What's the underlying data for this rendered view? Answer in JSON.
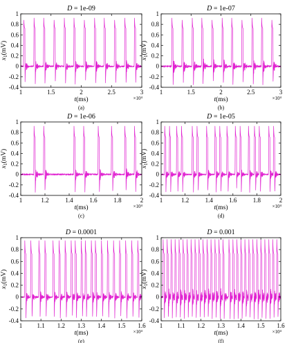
{
  "chart_data": [
    {
      "type": "line",
      "panel": "a",
      "caption": "(a)",
      "title_var": "D",
      "title_val": " = 1e-09",
      "xlabel": "t(ms)",
      "ylabel": "x1(mV)",
      "ylabel_main": "x",
      "ylabel_sub": "1",
      "ylabel_unit": "(mV)",
      "x_scale_label": "×10⁴",
      "xlim": [
        1,
        3
      ],
      "ylim": [
        -0.4,
        1.0
      ],
      "xticks": [
        1,
        1.5,
        2,
        2.5,
        3
      ],
      "xtick_labels": [
        "1",
        "1.5",
        "2",
        "2.5",
        "3"
      ],
      "yticks": [
        -0.4,
        -0.2,
        0,
        0.2,
        0.4,
        0.6,
        0.8,
        1
      ],
      "ytick_labels": [
        "-0.4",
        "-0.2",
        "0",
        "0.2",
        "0.4",
        "0.6",
        "0.8",
        "1"
      ],
      "color": "#e020d0",
      "spike_times": [
        1.05,
        1.22,
        1.38,
        1.55,
        1.72,
        1.88,
        2.05,
        2.22,
        2.38,
        2.55,
        2.72,
        2.88
      ],
      "spike_peak": 0.92,
      "plateau": 0.72,
      "trough": -0.33,
      "noise": 0.05
    },
    {
      "type": "line",
      "panel": "b",
      "caption": "(b)",
      "title_var": "D",
      "title_val": " = 1e-07",
      "xlabel": "t(ms)",
      "ylabel": "x1(mV)",
      "ylabel_main": "x",
      "ylabel_sub": "1",
      "ylabel_unit": "(mV)",
      "x_scale_label": "×10⁴",
      "xlim": [
        1,
        3
      ],
      "ylim": [
        -0.4,
        1.0
      ],
      "xticks": [
        1,
        1.5,
        2,
        2.5,
        3
      ],
      "xtick_labels": [
        "1",
        "1.5",
        "2",
        "2.5",
        "3"
      ],
      "yticks": [
        -0.4,
        -0.2,
        0,
        0.2,
        0.4,
        0.6,
        0.8,
        1
      ],
      "ytick_labels": [
        "-0.4",
        "-0.2",
        "0",
        "0.2",
        "0.4",
        "0.6",
        "0.8",
        "1"
      ],
      "color": "#e020d0",
      "spike_times": [
        1.18,
        1.35,
        1.52,
        1.68,
        1.85,
        2.02,
        2.18,
        2.35,
        2.52,
        2.68,
        2.85
      ],
      "spike_peak": 0.92,
      "plateau": 0.72,
      "trough": -0.33,
      "noise": 0.06
    },
    {
      "type": "line",
      "panel": "c",
      "caption": "(c)",
      "title_var": "D",
      "title_val": " = 1e-06",
      "xlabel": "t(ms)",
      "ylabel": "x1(mV)",
      "ylabel_main": "x",
      "ylabel_sub": "1",
      "ylabel_unit": "(mV)",
      "x_scale_label": "×10⁴",
      "xlim": [
        1,
        2
      ],
      "ylim": [
        -0.4,
        1.0
      ],
      "xticks": [
        1,
        1.2,
        1.4,
        1.6,
        1.8,
        2
      ],
      "xtick_labels": [
        "1",
        "1.2",
        "1.4",
        "1.6",
        "1.8",
        "2"
      ],
      "yticks": [
        -0.4,
        -0.2,
        0,
        0.2,
        0.4,
        0.6,
        0.8,
        1
      ],
      "ytick_labels": [
        "-0.4",
        "-0.2",
        "0",
        "0.2",
        "0.4",
        "0.6",
        "0.8",
        "1"
      ],
      "color": "#e020d0",
      "spike_times": [
        1.11,
        1.19,
        1.44,
        1.52,
        1.64,
        1.75,
        1.86,
        1.94
      ],
      "spike_peak": 0.92,
      "plateau": 0.7,
      "trough": -0.32,
      "noise": 0.05
    },
    {
      "type": "line",
      "panel": "d",
      "caption": "(d)",
      "title_var": "D",
      "title_val": " = 1e-05",
      "xlabel": "t(ms)",
      "ylabel": "x1(mV)",
      "ylabel_main": "x",
      "ylabel_sub": "1",
      "ylabel_unit": "(mV)",
      "x_scale_label": "×10⁴",
      "xlim": [
        1,
        2
      ],
      "ylim": [
        -0.4,
        1.0
      ],
      "xticks": [
        1,
        1.2,
        1.4,
        1.6,
        1.8,
        2
      ],
      "xtick_labels": [
        "1",
        "1.2",
        "1.4",
        "1.6",
        "1.8",
        "2"
      ],
      "yticks": [
        -0.4,
        -0.2,
        0,
        0.2,
        0.4,
        0.6,
        0.8,
        1
      ],
      "ytick_labels": [
        "-0.4",
        "-0.2",
        "0",
        "0.2",
        "0.4",
        "0.6",
        "0.8",
        "1"
      ],
      "color": "#e020d0",
      "spike_times": [
        1.03,
        1.07,
        1.13,
        1.17,
        1.26,
        1.3,
        1.38,
        1.45,
        1.49,
        1.55,
        1.62,
        1.66,
        1.73,
        1.78,
        1.82,
        1.9,
        1.94
      ],
      "spike_peak": 0.92,
      "plateau": 0.7,
      "trough": -0.32,
      "noise": 0.04
    },
    {
      "type": "line",
      "panel": "e",
      "caption": "(e)",
      "title_var": "D",
      "title_val": " = 0.0001",
      "xlabel": "t(ms)",
      "ylabel": "x1(mV)",
      "ylabel_main": "x",
      "ylabel_sub": "1",
      "ylabel_unit": "(mV)",
      "x_scale_label": "×10⁴",
      "xlim": [
        1,
        1.6
      ],
      "ylim": [
        -0.4,
        1.0
      ],
      "xticks": [
        1,
        1.1,
        1.2,
        1.3,
        1.4,
        1.5,
        1.6
      ],
      "xtick_labels": [
        "1",
        "1.1",
        "1.2",
        "1.3",
        "1.4",
        "1.5",
        "1.6"
      ],
      "yticks": [
        -0.4,
        -0.2,
        0,
        0.2,
        0.4,
        0.6,
        0.8,
        1
      ],
      "ytick_labels": [
        "-0.4",
        "-0.2",
        "0",
        "0.2",
        "0.4",
        "0.6",
        "0.8",
        "1"
      ],
      "color": "#e020d0",
      "spike_times": [
        1.02,
        1.05,
        1.09,
        1.12,
        1.16,
        1.19,
        1.22,
        1.25,
        1.27,
        1.3,
        1.32,
        1.35,
        1.37,
        1.4,
        1.43,
        1.46,
        1.49,
        1.52,
        1.55,
        1.58
      ],
      "spike_peak": 0.95,
      "plateau": 0.72,
      "trough": -0.33,
      "noise": 0.04
    },
    {
      "type": "line",
      "panel": "f",
      "caption": "(f)",
      "title_var": "D",
      "title_val": " = 0.001",
      "xlabel": "t(ms)",
      "ylabel": "x1(mV)",
      "ylabel_main": "x",
      "ylabel_sub": "1",
      "ylabel_unit": "(mV)",
      "x_scale_label": "×10⁴",
      "xlim": [
        1,
        1.6
      ],
      "ylim": [
        -0.4,
        1.0
      ],
      "xticks": [
        1,
        1.1,
        1.2,
        1.3,
        1.4,
        1.5,
        1.6
      ],
      "xtick_labels": [
        "1",
        "1.1",
        "1.2",
        "1.3",
        "1.4",
        "1.5",
        "1.6"
      ],
      "yticks": [
        -0.4,
        -0.2,
        0,
        0.2,
        0.4,
        0.6,
        0.8,
        1
      ],
      "ytick_labels": [
        "-0.4",
        "-0.2",
        "0",
        "0.2",
        "0.4",
        "0.6",
        "0.8",
        "1"
      ],
      "color": "#e020d0",
      "spike_times": [
        1.01,
        1.03,
        1.05,
        1.07,
        1.09,
        1.11,
        1.13,
        1.15,
        1.17,
        1.19,
        1.21,
        1.23,
        1.25,
        1.27,
        1.29,
        1.31,
        1.34,
        1.36,
        1.38,
        1.4,
        1.42,
        1.44,
        1.46,
        1.48,
        1.5,
        1.52,
        1.54,
        1.56,
        1.58
      ],
      "spike_peak": 0.97,
      "plateau": 0.72,
      "trough": -0.35,
      "noise": 0.06
    }
  ]
}
